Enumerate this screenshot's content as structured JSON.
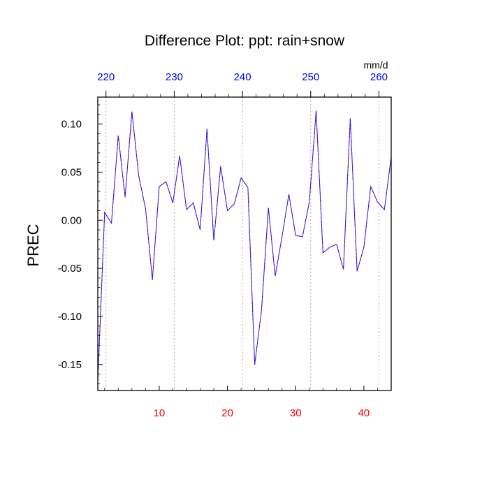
{
  "chart_data": {
    "type": "line",
    "title": "Difference Plot: ppt: rain+snow",
    "ylabel": "PREC",
    "units": "mm/d",
    "xlim": [
      1,
      44
    ],
    "ylim": [
      -0.177,
      0.128
    ],
    "grid_x": true,
    "colors": {
      "series_line": "#6a0dad",
      "series_dash": "#1a1aff",
      "bottom_ticks": "#ff0000",
      "top_ticks": "#0000ff",
      "grid": "#999999"
    },
    "x_ticks_bottom": [
      {
        "value": 10,
        "label": "10"
      },
      {
        "value": 20,
        "label": "20"
      },
      {
        "value": 30,
        "label": "30"
      },
      {
        "value": 40,
        "label": "40"
      }
    ],
    "x_ticks_top": [
      {
        "value": 2.2,
        "label": "220"
      },
      {
        "value": 12.2,
        "label": "230"
      },
      {
        "value": 22.2,
        "label": "240"
      },
      {
        "value": 32.2,
        "label": "250"
      },
      {
        "value": 42.2,
        "label": "260"
      }
    ],
    "y_ticks": [
      {
        "value": 0.1,
        "label": "0.10"
      },
      {
        "value": 0.05,
        "label": "0.05"
      },
      {
        "value": 0.0,
        "label": "0.00"
      },
      {
        "value": -0.05,
        "label": "-0.05"
      },
      {
        "value": -0.1,
        "label": "-0.10"
      },
      {
        "value": -0.15,
        "label": "-0.15"
      }
    ],
    "series": [
      {
        "x": [
          1,
          2,
          3,
          4,
          5,
          6,
          7,
          8,
          9,
          10,
          11,
          12,
          13,
          14,
          15,
          16,
          17,
          18,
          19,
          20,
          21,
          22,
          23,
          24,
          25,
          26,
          27,
          28,
          29,
          30,
          31,
          32,
          33,
          34,
          35,
          36,
          37,
          38,
          39,
          40,
          41,
          42,
          43,
          44
        ],
        "values": [
          -0.168,
          0.008,
          -0.003,
          0.088,
          0.024,
          0.113,
          0.046,
          0.012,
          -0.062,
          0.035,
          0.04,
          0.018,
          0.067,
          0.011,
          0.018,
          -0.01,
          0.095,
          -0.021,
          0.056,
          0.01,
          0.017,
          0.044,
          0.034,
          -0.15,
          -0.093,
          0.013,
          -0.058,
          -0.017,
          0.027,
          -0.016,
          -0.017,
          0.019,
          0.114,
          -0.034,
          -0.028,
          -0.025,
          -0.051,
          0.106,
          -0.053,
          -0.028,
          0.035,
          0.019,
          0.011,
          0.066
        ]
      }
    ]
  }
}
